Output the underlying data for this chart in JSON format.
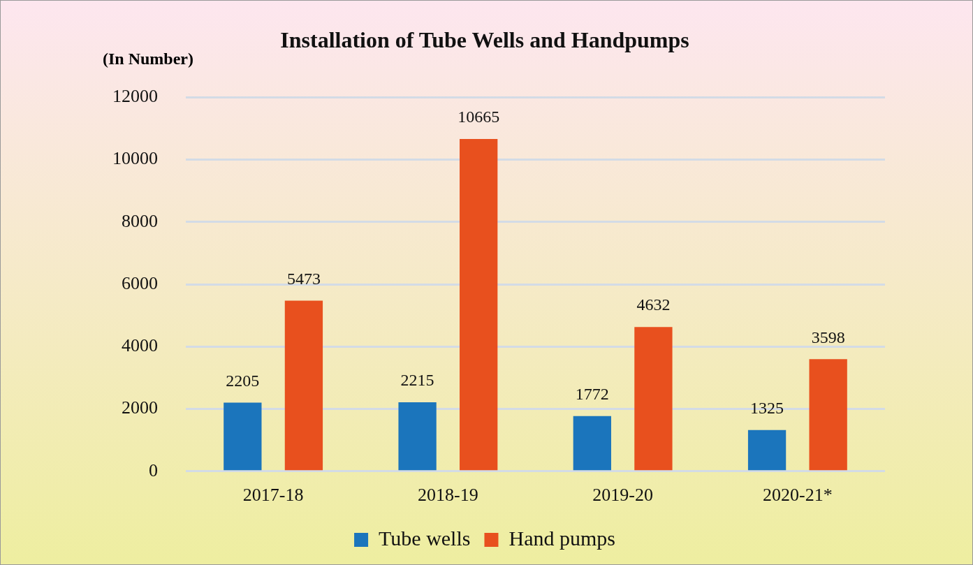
{
  "chart_data": {
    "type": "bar",
    "title": "Installation of Tube Wells and Handpumps",
    "ylabel": "(In Number)",
    "categories": [
      "2017-18",
      "2018-19",
      "2019-20",
      "2020-21*"
    ],
    "series": [
      {
        "name": "Tube wells",
        "color": "#1b75bc",
        "values": [
          2205,
          2215,
          1772,
          1325
        ]
      },
      {
        "name": "Hand pumps",
        "color": "#e8501e",
        "values": [
          5473,
          10665,
          4632,
          3598
        ]
      }
    ],
    "ylim": [
      0,
      12000
    ],
    "yticks": [
      0,
      2000,
      4000,
      6000,
      8000,
      10000,
      12000
    ],
    "grid": "y",
    "legend": "bottom",
    "data_labels": true
  }
}
